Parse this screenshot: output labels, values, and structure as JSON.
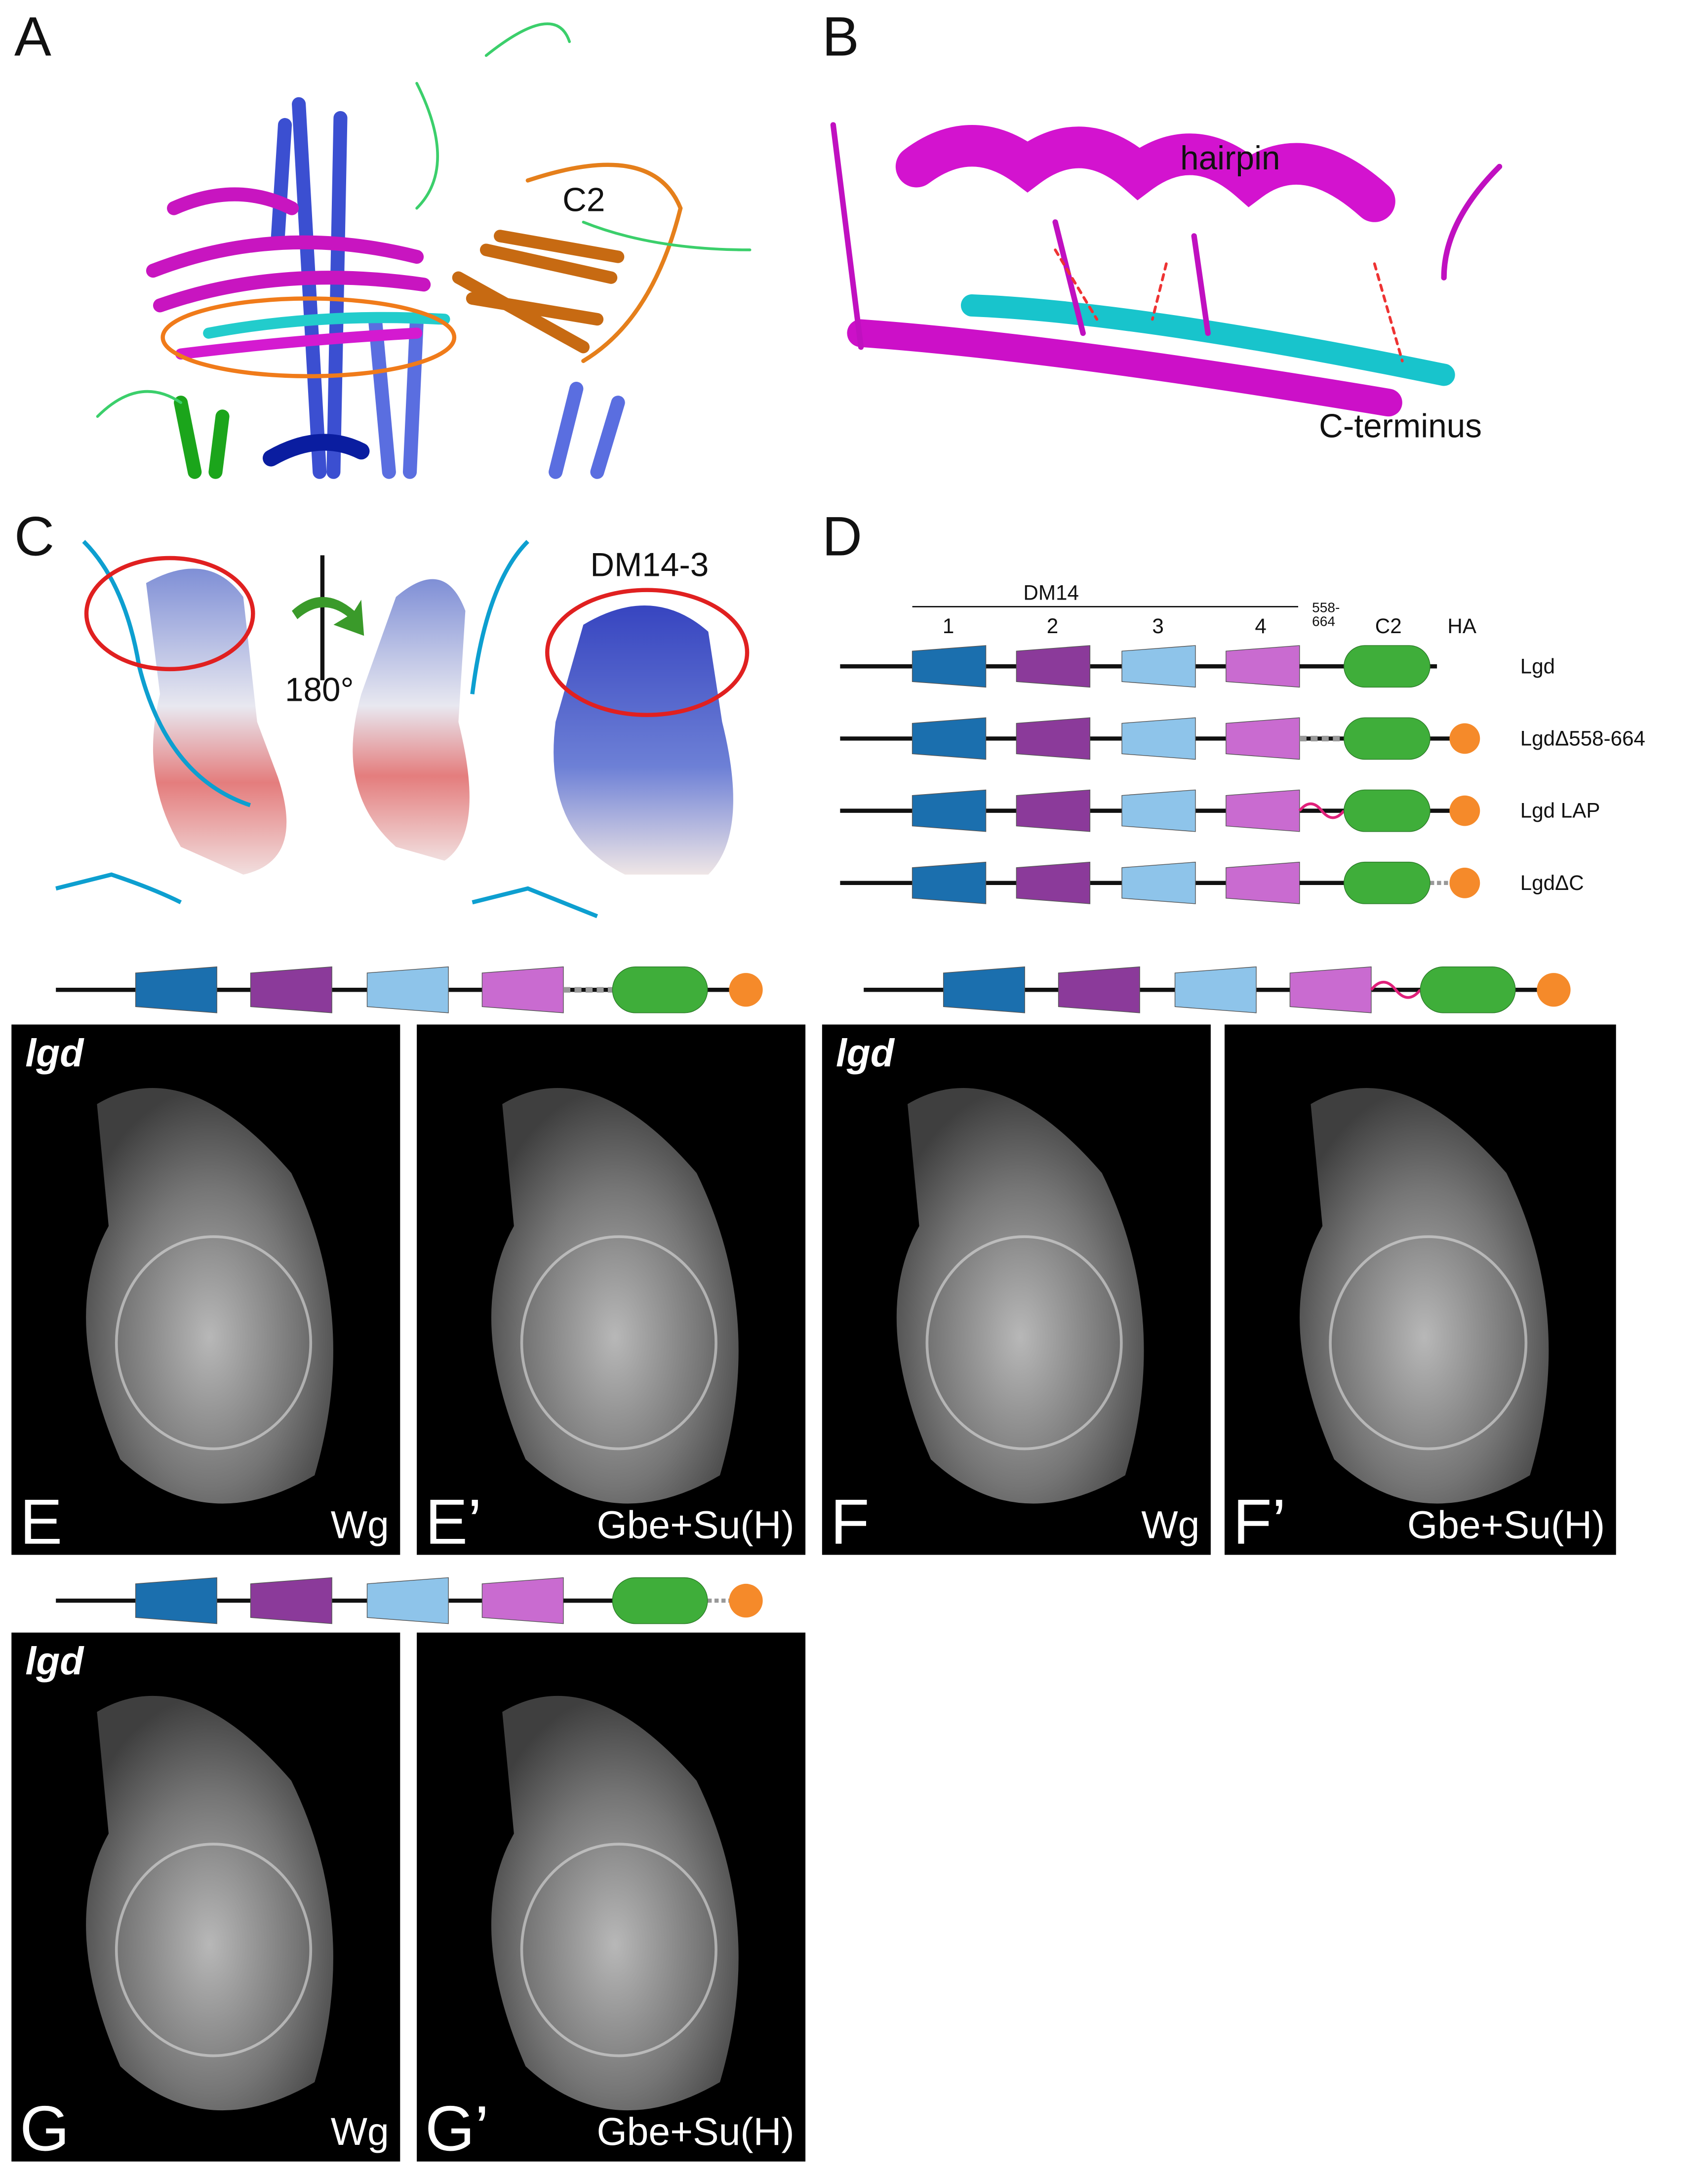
{
  "panel_a": {
    "label": "A",
    "annotation": "C2"
  },
  "panel_b": {
    "label": "B",
    "annotations": [
      "hairpin",
      "C-terminus"
    ]
  },
  "panel_c": {
    "label": "C",
    "rotation": "180°",
    "domain_label": "DM14-3"
  },
  "panel_d": {
    "label": "D",
    "region_header": "DM14",
    "repeats": [
      "1",
      "2",
      "3",
      "4"
    ],
    "deleted_region": [
      "558-",
      "664"
    ],
    "domain_columns": [
      "C2",
      "HA"
    ],
    "constructs": [
      "Lgd",
      "LgdΔ558-664",
      "Lgd LAP",
      "LgdΔC"
    ]
  },
  "images": [
    {
      "label": "E",
      "genotype": "lgd",
      "stain": "Wg"
    },
    {
      "label": "E’",
      "stain": "Gbe+Su(H)"
    },
    {
      "label": "F",
      "genotype": "lgd",
      "stain": "Wg"
    },
    {
      "label": "F’",
      "stain": "Gbe+Su(H)"
    },
    {
      "label": "G",
      "genotype": "lgd",
      "stain": "Wg"
    },
    {
      "label": "G’",
      "stain": "Gbe+Su(H)"
    }
  ]
}
